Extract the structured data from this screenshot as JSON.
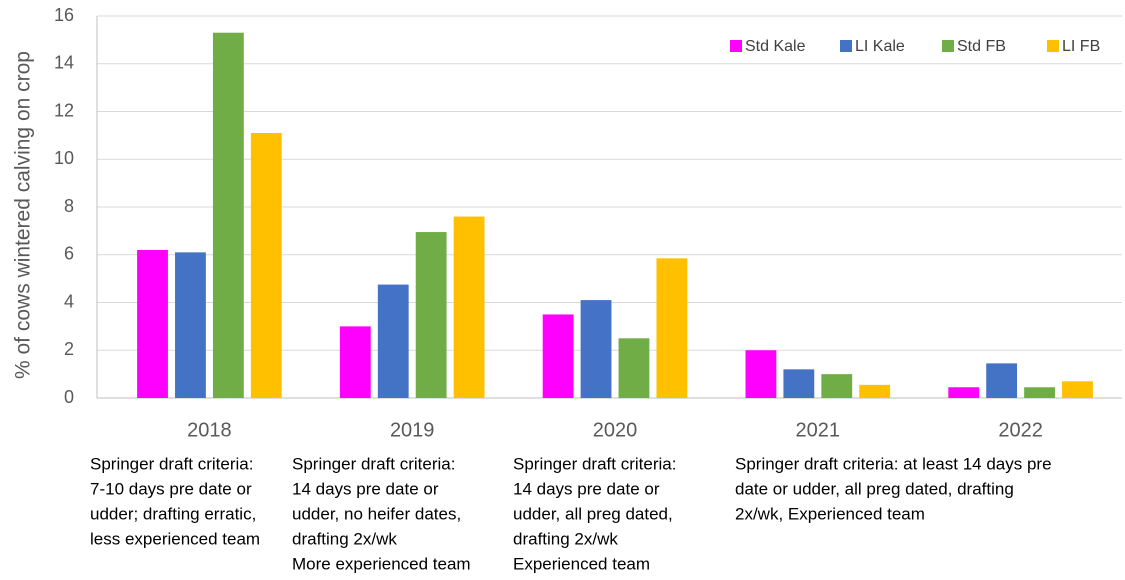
{
  "chart_data": {
    "type": "bar",
    "y_label": "% of cows wintered calving on crop",
    "categories": [
      "2018",
      "2019",
      "2020",
      "2021",
      "2022"
    ],
    "series": [
      {
        "name": "Std Kale",
        "color": "#ff00ff",
        "values": [
          6.2,
          3.0,
          3.5,
          2.0,
          0.45
        ]
      },
      {
        "name": "LI Kale",
        "color": "#4472c4",
        "values": [
          6.1,
          4.75,
          4.1,
          1.2,
          1.45
        ]
      },
      {
        "name": "Std FB",
        "color": "#70ad47",
        "values": [
          15.3,
          6.95,
          2.5,
          1.0,
          0.45
        ]
      },
      {
        "name": "LI FB",
        "color": "#ffc000",
        "values": [
          11.1,
          7.6,
          5.85,
          0.55,
          0.7
        ]
      }
    ],
    "ylim": [
      0,
      16
    ],
    "yticks": [
      0,
      2,
      4,
      6,
      8,
      10,
      12,
      14,
      16
    ],
    "grid": true,
    "legend": "top-right",
    "annotations": [
      [
        "Springer draft criteria:",
        "7-10 days pre date or",
        "udder; drafting erratic,",
        "less experienced team"
      ],
      [
        "Springer draft criteria:",
        "14 days pre date or",
        "udder, no heifer dates,",
        "drafting 2x/wk",
        "More experienced team"
      ],
      [
        "Springer draft criteria:",
        "14 days pre date or",
        "udder, all preg dated,",
        "drafting 2x/wk",
        "Experienced team"
      ],
      [
        "Springer draft criteria: at least 14 days pre",
        "date or udder, all preg dated, drafting",
        "2x/wk, Experienced team"
      ]
    ]
  }
}
